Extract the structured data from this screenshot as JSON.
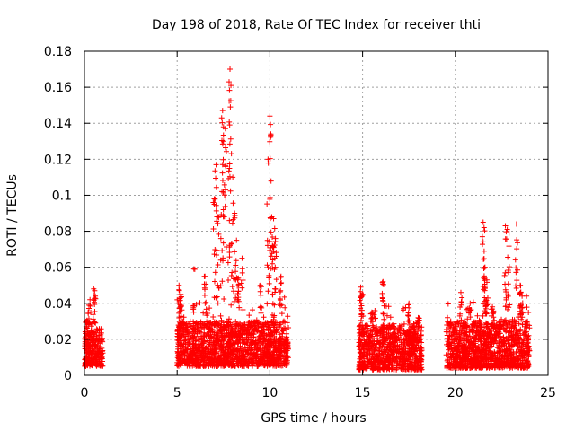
{
  "chart_data": {
    "type": "scatter",
    "title": "Day 198 of 2018, Rate Of TEC Index for receiver thti",
    "xlabel": "GPS time / hours",
    "ylabel": "ROTI / TECUs",
    "xlim": [
      0,
      25
    ],
    "ylim": [
      0,
      0.18
    ],
    "xticks": [
      "0",
      "5",
      "10",
      "15",
      "20",
      "25"
    ],
    "yticks": [
      "0",
      "0.02",
      "0.04",
      "0.06",
      "0.08",
      "0.1",
      "0.12",
      "0.14",
      "0.16",
      "0.18"
    ],
    "grid": true,
    "marker": "plus",
    "color": "#ff0000",
    "clusters": [
      {
        "x": [
          0.0,
          1.0
        ],
        "base": [
          0.005,
          0.025
        ],
        "spikes": [
          [
            0.1,
            0.03
          ],
          [
            0.3,
            0.042
          ],
          [
            0.5,
            0.048
          ],
          [
            0.55,
            0.047
          ],
          [
            0.2,
            0.035
          ]
        ]
      },
      {
        "x": [
          5.0,
          11.0
        ],
        "base": [
          0.005,
          0.03
        ],
        "spikes": [
          [
            5.1,
            0.05
          ],
          [
            5.2,
            0.045
          ],
          [
            5.9,
            0.059
          ],
          [
            6.5,
            0.055
          ],
          [
            7.0,
            0.098
          ],
          [
            7.1,
            0.117
          ],
          [
            7.2,
            0.088
          ],
          [
            7.4,
            0.143
          ],
          [
            7.45,
            0.147
          ],
          [
            7.5,
            0.13
          ],
          [
            7.6,
            0.137
          ],
          [
            7.8,
            0.163
          ],
          [
            7.85,
            0.17
          ],
          [
            7.9,
            0.161
          ],
          [
            8.0,
            0.11
          ],
          [
            8.1,
            0.09
          ],
          [
            8.2,
            0.075
          ],
          [
            8.3,
            0.054
          ],
          [
            8.5,
            0.065
          ],
          [
            9.5,
            0.05
          ],
          [
            9.9,
            0.12
          ],
          [
            10.0,
            0.144
          ],
          [
            10.05,
            0.134
          ],
          [
            10.1,
            0.088
          ],
          [
            10.2,
            0.087
          ],
          [
            10.3,
            0.076
          ],
          [
            10.6,
            0.055
          ]
        ]
      },
      {
        "x": [
          14.8,
          18.2
        ],
        "base": [
          0.003,
          0.028
        ],
        "spikes": [
          [
            14.9,
            0.049
          ],
          [
            15.0,
            0.045
          ],
          [
            15.5,
            0.035
          ],
          [
            16.1,
            0.052
          ],
          [
            17.5,
            0.04
          ],
          [
            18.0,
            0.032
          ]
        ]
      },
      {
        "x": [
          19.5,
          24.0
        ],
        "base": [
          0.004,
          0.03
        ],
        "spikes": [
          [
            20.3,
            0.046
          ],
          [
            20.8,
            0.04
          ],
          [
            21.5,
            0.085
          ],
          [
            21.55,
            0.082
          ],
          [
            21.6,
            0.06
          ],
          [
            21.7,
            0.053
          ],
          [
            22.7,
            0.083
          ],
          [
            22.8,
            0.081
          ],
          [
            22.9,
            0.079
          ],
          [
            23.3,
            0.084
          ],
          [
            23.5,
            0.05
          ],
          [
            23.6,
            0.044
          ],
          [
            22.0,
            0.038
          ]
        ]
      }
    ]
  }
}
